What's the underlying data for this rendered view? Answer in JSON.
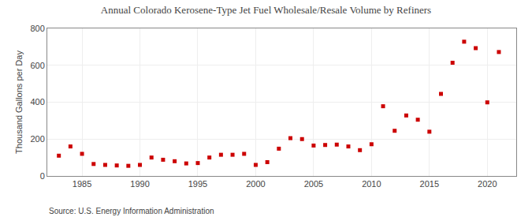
{
  "chart_data": {
    "type": "scatter",
    "title": "Annual Colorado Kerosene-Type Jet Fuel Wholesale/Resale Volume by Refiners",
    "y_label": "Thousand Gallons per Day",
    "annotations": [
      "Source: U.S. Energy Information Administration"
    ],
    "x": [
      1983,
      1984,
      1985,
      1986,
      1987,
      1988,
      1989,
      1990,
      1991,
      1992,
      1993,
      1994,
      1995,
      1996,
      1997,
      1998,
      1999,
      2000,
      2001,
      2002,
      2003,
      2004,
      2005,
      2006,
      2007,
      2008,
      2009,
      2010,
      2011,
      2012,
      2013,
      2014,
      2015,
      2016,
      2017,
      2018,
      2019,
      2020,
      2021
    ],
    "values": [
      110,
      160,
      120,
      65,
      60,
      57,
      55,
      60,
      100,
      88,
      80,
      68,
      70,
      100,
      115,
      115,
      120,
      60,
      75,
      148,
      205,
      200,
      165,
      168,
      170,
      160,
      140,
      172,
      378,
      245,
      328,
      305,
      240,
      445,
      614,
      728,
      693,
      399,
      672
    ],
    "color": "#cc0000",
    "marker": "square",
    "xlim": [
      1982,
      2022.5
    ],
    "xticks": [
      1985,
      1990,
      1995,
      2000,
      2005,
      2010,
      2015,
      2020
    ],
    "ylim": [
      0,
      800
    ],
    "yticks": [
      0,
      200,
      400,
      600,
      800
    ],
    "grid": true
  }
}
